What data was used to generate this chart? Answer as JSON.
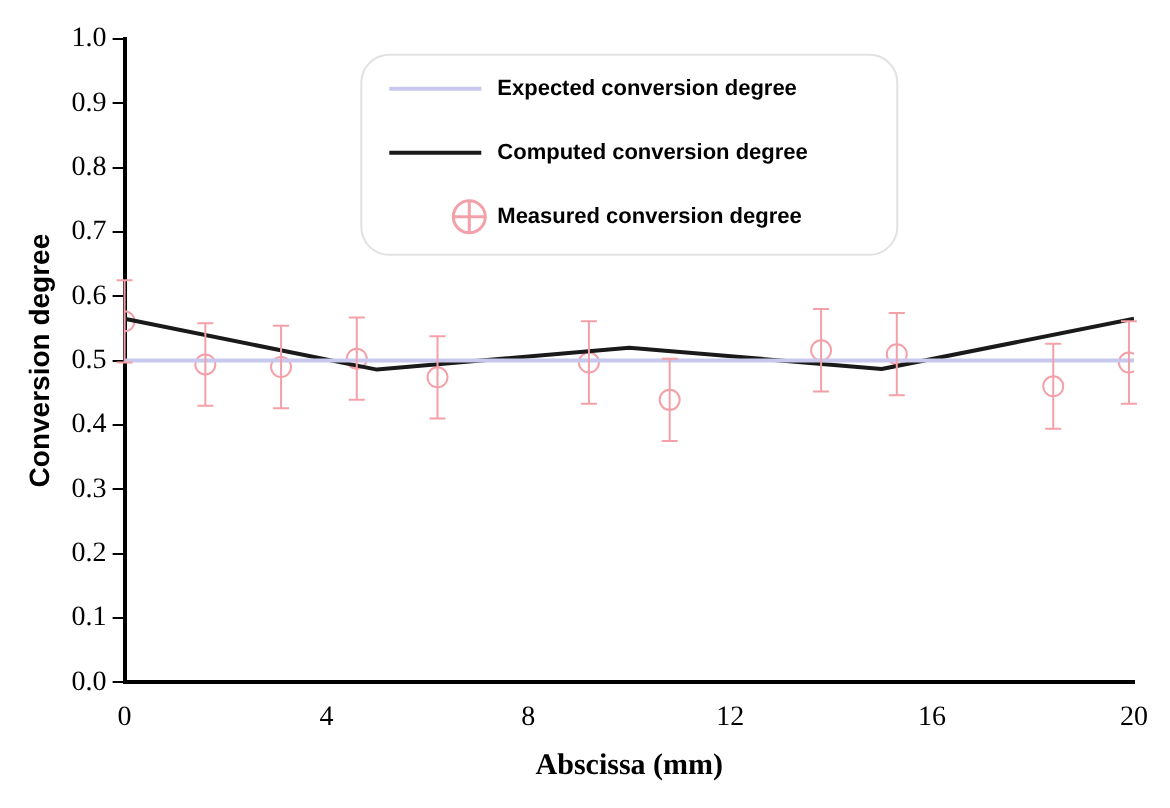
{
  "chart_data": {
    "type": "line",
    "xlabel": "Abscissa (mm)",
    "ylabel": "Conversion degree",
    "xlim": [
      0,
      20
    ],
    "xticks": [
      0,
      4,
      8,
      12,
      16,
      20
    ],
    "ylim": [
      0,
      1
    ],
    "yticks": [
      {
        "value": 0,
        "label": "0.0"
      },
      {
        "value": 0.1,
        "label": "0.1"
      },
      {
        "value": 0.2,
        "label": "0.2"
      },
      {
        "value": 0.3,
        "label": "0.3"
      },
      {
        "value": 0.4,
        "label": "0.4"
      },
      {
        "value": 0.5,
        "label": "0.5"
      },
      {
        "value": 0.6,
        "label": "0.6"
      },
      {
        "value": 0.7,
        "label": "0.7"
      },
      {
        "value": 0.8,
        "label": "0.8"
      },
      {
        "value": 0.9,
        "label": "0.9"
      },
      {
        "value": 1,
        "label": "1.0"
      }
    ],
    "grid": false,
    "legend": "top",
    "series": [
      {
        "name": "Expected conversion degree",
        "type": "line",
        "color": "#c8c8ee",
        "x": [
          0,
          20
        ],
        "values": [
          0.5,
          0.5
        ],
        "marker": "none"
      },
      {
        "name": "Computed conversion degree",
        "type": "line",
        "color": "#1a1a1a",
        "x": [
          0,
          5,
          10,
          15,
          20
        ],
        "values": [
          0.565,
          0.486,
          0.52,
          0.487,
          0.565
        ],
        "marker": "none"
      },
      {
        "name": "Measured conversion degree",
        "type": "scatter",
        "color": "#f4a0a8",
        "marker": "circle",
        "x": [
          0,
          1.6,
          3.1,
          4.6,
          6.2,
          9.2,
          10.8,
          13.8,
          15.3,
          18.4,
          19.9
        ],
        "values": [
          0.561,
          0.494,
          0.49,
          0.503,
          0.474,
          0.497,
          0.439,
          0.516,
          0.51,
          0.46,
          0.497
        ],
        "errors": [
          0.064,
          0.064,
          0.064,
          0.064,
          0.064,
          0.064,
          0.064,
          0.064,
          0.064,
          0.066,
          0.064
        ]
      }
    ]
  }
}
